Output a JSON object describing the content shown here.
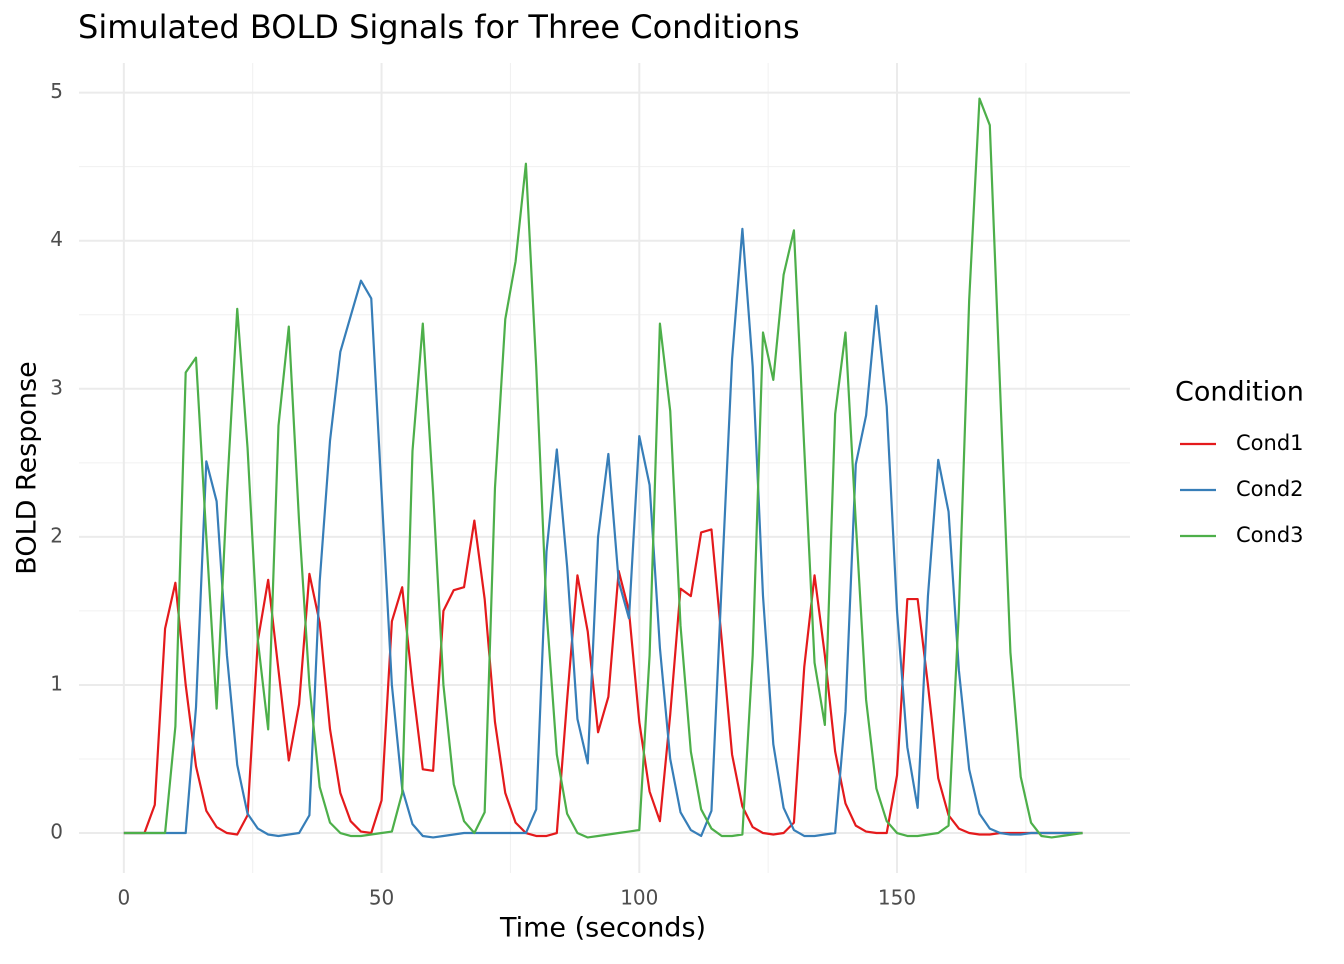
{
  "chart_data": {
    "type": "line",
    "title": "Simulated BOLD Signals for Three Conditions",
    "x_label": "Time (seconds)",
    "y_label": "BOLD Response",
    "legend_title": "Condition",
    "legend_position": "right",
    "grid": true,
    "x": [
      0,
      2,
      4,
      6,
      8,
      10,
      12,
      14,
      16,
      18,
      20,
      22,
      24,
      26,
      28,
      30,
      32,
      34,
      36,
      38,
      40,
      42,
      44,
      46,
      48,
      50,
      52,
      54,
      56,
      58,
      60,
      62,
      64,
      66,
      68,
      70,
      72,
      74,
      76,
      78,
      80,
      82,
      84,
      86,
      88,
      90,
      92,
      94,
      96,
      98,
      100,
      102,
      104,
      106,
      108,
      110,
      112,
      114,
      116,
      118,
      120,
      122,
      124,
      126,
      128,
      130,
      132,
      134,
      136,
      138,
      140,
      142,
      144,
      146,
      148,
      150,
      152,
      154,
      156,
      158,
      160,
      162,
      164,
      166,
      168,
      170,
      172,
      174,
      176,
      178,
      180,
      182,
      184,
      186
    ],
    "xlim": [
      -8.7,
      195.2
    ],
    "xticks": [
      0,
      50,
      100,
      150
    ],
    "ylim": [
      -0.27,
      5.2
    ],
    "yticks": [
      0,
      1,
      2,
      3,
      4,
      5
    ],
    "series": [
      {
        "name": "Cond1",
        "color": "#e41a1c",
        "values": [
          0,
          0,
          0,
          0.19,
          1.38,
          1.69,
          1.0,
          0.45,
          0.15,
          0.04,
          0.0,
          -0.01,
          0.12,
          1.3,
          1.71,
          1.1,
          0.49,
          0.87,
          1.75,
          1.42,
          0.7,
          0.27,
          0.08,
          0.01,
          0.0,
          0.22,
          1.43,
          1.66,
          1.0,
          0.43,
          0.42,
          1.5,
          1.64,
          1.66,
          2.11,
          1.58,
          0.75,
          0.27,
          0.07,
          0.0,
          -0.02,
          -0.02,
          0.0,
          0.9,
          1.74,
          1.36,
          0.68,
          0.92,
          1.77,
          1.5,
          0.75,
          0.28,
          0.08,
          0.8,
          1.65,
          1.6,
          2.03,
          2.05,
          1.3,
          0.53,
          0.18,
          0.04,
          0.0,
          -0.01,
          0.0,
          0.07,
          1.12,
          1.74,
          1.2,
          0.55,
          0.2,
          0.05,
          0.01,
          0.0,
          0.0,
          0.39,
          1.58,
          1.58,
          1.0,
          0.37,
          0.12,
          0.03,
          0.0,
          -0.01,
          -0.01,
          0.0,
          0.0,
          0.0,
          0.0,
          0.0,
          0.0,
          0.0,
          0.0,
          0.0
        ]
      },
      {
        "name": "Cond2",
        "color": "#377eb8",
        "values": [
          0,
          0,
          0,
          0,
          0,
          0,
          0,
          0.85,
          2.51,
          2.24,
          1.2,
          0.46,
          0.13,
          0.03,
          -0.01,
          -0.02,
          -0.01,
          0.0,
          0.12,
          1.7,
          2.65,
          3.25,
          3.49,
          3.73,
          3.61,
          2.3,
          1.0,
          0.3,
          0.06,
          -0.02,
          -0.03,
          -0.02,
          -0.01,
          0.0,
          0.0,
          0.0,
          0.0,
          0.0,
          0.0,
          0.0,
          0.16,
          1.9,
          2.59,
          1.8,
          0.77,
          0.47,
          2.0,
          2.56,
          1.7,
          1.45,
          2.68,
          2.35,
          1.25,
          0.5,
          0.14,
          0.02,
          -0.02,
          0.15,
          1.7,
          3.2,
          4.08,
          3.15,
          1.6,
          0.6,
          0.17,
          0.02,
          -0.02,
          -0.02,
          -0.01,
          0.0,
          0.82,
          2.49,
          2.82,
          3.56,
          2.88,
          1.5,
          0.58,
          0.17,
          1.6,
          2.52,
          2.17,
          1.1,
          0.43,
          0.13,
          0.03,
          0.0,
          -0.01,
          -0.01,
          0.0,
          0.0,
          0.0,
          0.0,
          0.0,
          0.0
        ]
      },
      {
        "name": "Cond3",
        "color": "#4daf4a",
        "values": [
          0,
          0,
          0,
          0,
          0,
          0.72,
          3.11,
          3.21,
          2.0,
          0.84,
          2.3,
          3.54,
          2.6,
          1.3,
          0.7,
          2.75,
          3.42,
          2.1,
          1.0,
          0.31,
          0.07,
          0.0,
          -0.02,
          -0.02,
          -0.01,
          0.0,
          0.01,
          0.27,
          2.58,
          3.44,
          2.3,
          1.0,
          0.33,
          0.08,
          0.0,
          0.14,
          2.33,
          3.47,
          3.86,
          4.52,
          3.15,
          1.5,
          0.53,
          0.13,
          0.0,
          -0.03,
          -0.02,
          -0.01,
          0.0,
          0.01,
          0.02,
          1.2,
          3.44,
          2.85,
          1.4,
          0.55,
          0.16,
          0.03,
          -0.02,
          -0.02,
          -0.01,
          1.2,
          3.38,
          3.06,
          3.77,
          4.07,
          2.6,
          1.15,
          0.73,
          2.83,
          3.38,
          2.1,
          0.9,
          0.3,
          0.08,
          0.0,
          -0.02,
          -0.02,
          -0.01,
          0.0,
          0.05,
          1.5,
          3.6,
          4.96,
          4.78,
          3.0,
          1.22,
          0.38,
          0.07,
          -0.02,
          -0.03,
          -0.02,
          -0.01,
          0.0
        ]
      }
    ]
  }
}
